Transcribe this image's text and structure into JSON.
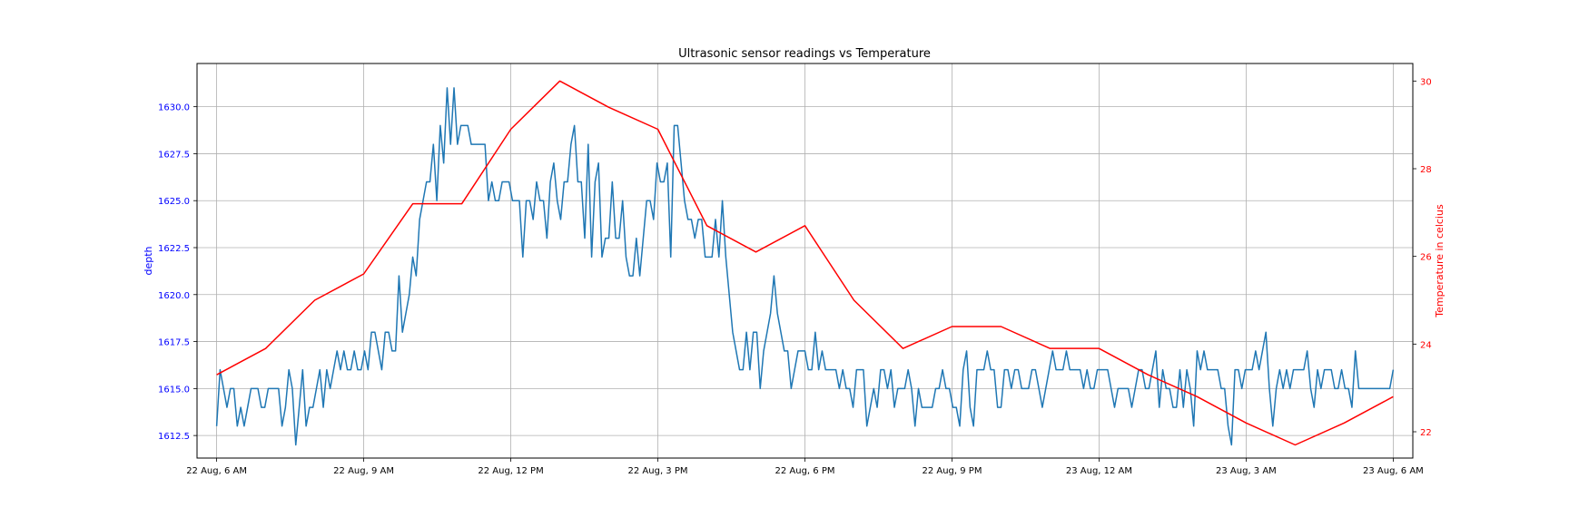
{
  "chart_data": {
    "type": "line",
    "title": "Ultrasonic sensor readings vs Temperature",
    "xlabel": "",
    "ylabel": "depth",
    "y2label": "Temperature in celcius",
    "grid": true,
    "legend": "none",
    "colors": {
      "depth": "#1f77b4",
      "temperature": "#ff0000",
      "left_axis": "#0000ff",
      "right_axis": "#ff0000"
    },
    "xlim": [
      "2023-08-22 05:36",
      "2023-08-23 06:24"
    ],
    "ylim": [
      1611.3,
      1632.3
    ],
    "y2lim": [
      21.4,
      30.4
    ],
    "x_ticks": [
      {
        "t": "2023-08-22 06:00",
        "label": "22 Aug, 6 AM"
      },
      {
        "t": "2023-08-22 09:00",
        "label": "22 Aug, 9 AM"
      },
      {
        "t": "2023-08-22 12:00",
        "label": "22 Aug, 12 PM"
      },
      {
        "t": "2023-08-22 15:00",
        "label": "22 Aug, 3 PM"
      },
      {
        "t": "2023-08-22 18:00",
        "label": "22 Aug, 6 PM"
      },
      {
        "t": "2023-08-22 21:00",
        "label": "22 Aug, 9 PM"
      },
      {
        "t": "2023-08-23 00:00",
        "label": "23 Aug, 12 AM"
      },
      {
        "t": "2023-08-23 03:00",
        "label": "23 Aug, 3 AM"
      },
      {
        "t": "2023-08-23 06:00",
        "label": "23 Aug, 6 AM"
      }
    ],
    "y_ticks": [
      {
        "v": 1612.5,
        "label": "1612.5"
      },
      {
        "v": 1615.0,
        "label": "1615.0"
      },
      {
        "v": 1617.5,
        "label": "1617.5"
      },
      {
        "v": 1620.0,
        "label": "1620.0"
      },
      {
        "v": 1622.5,
        "label": "1622.5"
      },
      {
        "v": 1625.0,
        "label": "1625.0"
      },
      {
        "v": 1627.5,
        "label": "1627.5"
      },
      {
        "v": 1630.0,
        "label": "1630.0"
      }
    ],
    "y2_ticks": [
      {
        "v": 22,
        "label": "22"
      },
      {
        "v": 24,
        "label": "24"
      },
      {
        "v": 26,
        "label": "26"
      },
      {
        "v": 28,
        "label": "28"
      },
      {
        "v": 30,
        "label": "30"
      }
    ],
    "series": [
      {
        "key": "depth",
        "axis": "left",
        "start": "2023-08-22 06:00",
        "end": "2023-08-23 06:00",
        "values": [
          1613,
          1616,
          1615,
          1614,
          1615,
          1615,
          1613,
          1614,
          1613,
          1614,
          1615,
          1615,
          1615,
          1614,
          1614,
          1615,
          1615,
          1615,
          1615,
          1613,
          1614,
          1616,
          1615,
          1612,
          1614,
          1616,
          1613,
          1614,
          1614,
          1615,
          1616,
          1614,
          1616,
          1615,
          1616,
          1617,
          1616,
          1617,
          1616,
          1616,
          1617,
          1616,
          1616,
          1617,
          1616,
          1618,
          1618,
          1617,
          1616,
          1618,
          1618,
          1617,
          1617,
          1621,
          1618,
          1619,
          1620,
          1622,
          1621,
          1624,
          1625,
          1626,
          1626,
          1628,
          1625,
          1629,
          1627,
          1631,
          1628,
          1631,
          1628,
          1629,
          1629,
          1629,
          1628,
          1628,
          1628,
          1628,
          1628,
          1625,
          1626,
          1625,
          1625,
          1626,
          1626,
          1626,
          1625,
          1625,
          1625,
          1622,
          1625,
          1625,
          1624,
          1626,
          1625,
          1625,
          1623,
          1626,
          1627,
          1625,
          1624,
          1626,
          1626,
          1628,
          1629,
          1626,
          1626,
          1623,
          1628,
          1622,
          1626,
          1627,
          1622,
          1623,
          1623,
          1626,
          1623,
          1623,
          1625,
          1622,
          1621,
          1621,
          1623,
          1621,
          1623,
          1625,
          1625,
          1624,
          1627,
          1626,
          1626,
          1627,
          1622,
          1629,
          1629,
          1627,
          1625,
          1624,
          1624,
          1623,
          1624,
          1624,
          1622,
          1622,
          1622,
          1624,
          1622,
          1625,
          1622,
          1620,
          1618,
          1617,
          1616,
          1616,
          1618,
          1616,
          1618,
          1618,
          1615,
          1617,
          1618,
          1619,
          1621,
          1619,
          1618,
          1617,
          1617,
          1615,
          1616,
          1617,
          1617,
          1617,
          1616,
          1616,
          1618,
          1616,
          1617,
          1616,
          1616,
          1616,
          1616,
          1615,
          1616,
          1615,
          1615,
          1614,
          1616,
          1616,
          1616,
          1613,
          1614,
          1615,
          1614,
          1616,
          1616,
          1615,
          1616,
          1614,
          1615,
          1615,
          1615,
          1616,
          1615,
          1613,
          1615,
          1614,
          1614,
          1614,
          1614,
          1615,
          1615,
          1616,
          1615,
          1615,
          1614,
          1614,
          1613,
          1616,
          1617,
          1614,
          1613,
          1616,
          1616,
          1616,
          1617,
          1616,
          1616,
          1614,
          1614,
          1616,
          1616,
          1615,
          1616,
          1616,
          1615,
          1615,
          1615,
          1616,
          1616,
          1615,
          1614,
          1615,
          1616,
          1617,
          1616,
          1616,
          1616,
          1617,
          1616,
          1616,
          1616,
          1616,
          1615,
          1616,
          1615,
          1615,
          1616,
          1616,
          1616,
          1616,
          1615,
          1614,
          1615,
          1615,
          1615,
          1615,
          1614,
          1615,
          1616,
          1616,
          1615,
          1615,
          1616,
          1617,
          1614,
          1616,
          1615,
          1615,
          1614,
          1614,
          1616,
          1614,
          1616,
          1615,
          1613,
          1617,
          1616,
          1617,
          1616,
          1616,
          1616,
          1616,
          1615,
          1615,
          1613,
          1612,
          1616,
          1616,
          1615,
          1616,
          1616,
          1616,
          1617,
          1616,
          1617,
          1618,
          1615,
          1613,
          1615,
          1616,
          1615,
          1616,
          1615,
          1616,
          1616,
          1616,
          1616,
          1617,
          1615,
          1614,
          1616,
          1615,
          1616,
          1616,
          1616,
          1615,
          1615,
          1616,
          1615,
          1615,
          1614,
          1617,
          1615,
          1615,
          1615,
          1615,
          1615,
          1615,
          1615,
          1615,
          1615,
          1615,
          1616
        ]
      },
      {
        "key": "temperature",
        "axis": "right",
        "x": [
          "2023-08-22 06:00",
          "2023-08-22 07:00",
          "2023-08-22 08:00",
          "2023-08-22 09:00",
          "2023-08-22 10:00",
          "2023-08-22 11:00",
          "2023-08-22 12:00",
          "2023-08-22 13:00",
          "2023-08-22 14:00",
          "2023-08-22 15:00",
          "2023-08-22 16:00",
          "2023-08-22 17:00",
          "2023-08-22 18:00",
          "2023-08-22 19:00",
          "2023-08-22 20:00",
          "2023-08-22 21:00",
          "2023-08-22 22:00",
          "2023-08-22 23:00",
          "2023-08-23 00:00",
          "2023-08-23 01:00",
          "2023-08-23 02:00",
          "2023-08-23 03:00",
          "2023-08-23 04:00",
          "2023-08-23 05:00",
          "2023-08-23 06:00"
        ],
        "values": [
          23.3,
          23.9,
          25.0,
          25.6,
          27.2,
          27.2,
          28.9,
          30.0,
          29.4,
          28.9,
          26.7,
          26.1,
          26.7,
          25.0,
          23.9,
          24.4,
          24.4,
          23.9,
          23.9,
          23.3,
          22.8,
          22.2,
          21.7,
          22.2,
          22.8
        ]
      }
    ]
  }
}
